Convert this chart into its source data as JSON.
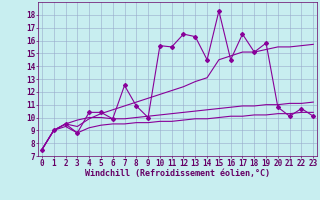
{
  "xlabel": "Windchill (Refroidissement éolien,°C)",
  "background_color": "#c8eef0",
  "line_color": "#880099",
  "grid_color": "#99aacc",
  "x": [
    0,
    1,
    2,
    3,
    4,
    5,
    6,
    7,
    8,
    9,
    10,
    11,
    12,
    13,
    14,
    15,
    16,
    17,
    18,
    19,
    20,
    21,
    22,
    23
  ],
  "line1": [
    7.5,
    9.0,
    9.5,
    8.8,
    10.4,
    10.4,
    9.9,
    12.5,
    10.9,
    10.0,
    15.6,
    15.5,
    16.5,
    16.3,
    14.5,
    18.3,
    14.5,
    16.5,
    15.1,
    15.8,
    10.8,
    10.1,
    10.7,
    10.1
  ],
  "line2": [
    7.5,
    9.0,
    9.5,
    9.3,
    9.9,
    10.3,
    10.6,
    10.9,
    11.2,
    11.5,
    11.8,
    12.1,
    12.4,
    12.8,
    13.1,
    14.5,
    14.8,
    15.1,
    15.1,
    15.3,
    15.5,
    15.5,
    15.6,
    15.7
  ],
  "line3": [
    7.5,
    9.0,
    9.5,
    9.8,
    10.0,
    10.0,
    9.9,
    9.9,
    10.0,
    10.1,
    10.2,
    10.3,
    10.4,
    10.5,
    10.6,
    10.7,
    10.8,
    10.9,
    10.9,
    11.0,
    11.0,
    11.1,
    11.1,
    11.2
  ],
  "line4": [
    7.5,
    9.0,
    9.3,
    8.8,
    9.2,
    9.4,
    9.5,
    9.5,
    9.6,
    9.6,
    9.7,
    9.7,
    9.8,
    9.9,
    9.9,
    10.0,
    10.1,
    10.1,
    10.2,
    10.2,
    10.3,
    10.3,
    10.4,
    10.4
  ],
  "ylim": [
    7,
    19
  ],
  "xlim": [
    -0.3,
    23.3
  ],
  "yticks": [
    7,
    8,
    9,
    10,
    11,
    12,
    13,
    14,
    15,
    16,
    17,
    18
  ],
  "xticks": [
    0,
    1,
    2,
    3,
    4,
    5,
    6,
    7,
    8,
    9,
    10,
    11,
    12,
    13,
    14,
    15,
    16,
    17,
    18,
    19,
    20,
    21,
    22,
    23
  ],
  "font_color": "#660066",
  "xlabel_fontsize": 6.0,
  "tick_fontsize": 5.5
}
